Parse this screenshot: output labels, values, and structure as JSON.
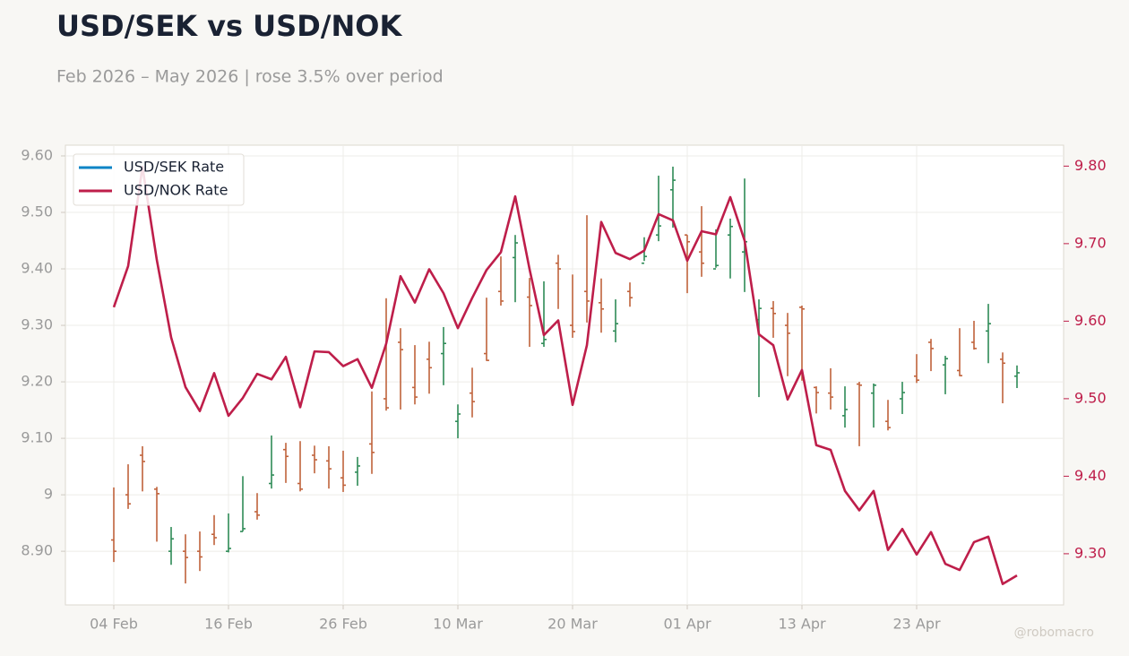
{
  "chart_data": {
    "type": "ohlc",
    "title": "USD/SEK vs USD/NOK",
    "subtitle": "Feb 2026 – May 2026 | rose 3.5% over period",
    "watermark": "@robomacro",
    "categories": [
      "04 Feb",
      null,
      null,
      null,
      null,
      null,
      null,
      null,
      "16 Feb",
      null,
      null,
      null,
      null,
      null,
      null,
      null,
      "26 Feb",
      null,
      null,
      null,
      null,
      null,
      null,
      null,
      "10 Mar",
      null,
      null,
      null,
      null,
      null,
      null,
      null,
      "20 Mar",
      null,
      null,
      null,
      null,
      null,
      null,
      null,
      "01 Apr",
      null,
      null,
      null,
      null,
      null,
      null,
      null,
      "13 Apr",
      null,
      null,
      null,
      null,
      null,
      null,
      null,
      "23 Apr",
      null,
      null,
      null,
      null,
      null,
      null,
      null
    ],
    "up_color": "#2e8b57",
    "down_color": "#c0623b",
    "grid": true,
    "legend": "upper left",
    "ylim": [
      8.805,
      9.619
    ],
    "yticks": [
      {
        "value": 8.9,
        "label": "8.90"
      },
      9,
      {
        "value": 9.1,
        "label": "9.10"
      },
      {
        "value": 9.2,
        "label": "9.20"
      },
      {
        "value": 9.3,
        "label": "9.30"
      },
      {
        "value": 9.4,
        "label": "9.40"
      },
      {
        "value": 9.5,
        "label": "9.50"
      },
      {
        "value": 9.6,
        "label": "9.60"
      }
    ],
    "y2lim": [
      9.234,
      9.827
    ],
    "y2ticks": [
      {
        "value": 9.3,
        "label": "9.30"
      },
      {
        "value": 9.4,
        "label": "9.40"
      },
      {
        "value": 9.5,
        "label": "9.50"
      },
      {
        "value": 9.6,
        "label": "9.60"
      },
      {
        "value": 9.7,
        "label": "9.70"
      },
      {
        "value": 9.8,
        "label": "9.80"
      }
    ],
    "series": [
      {
        "name": "USD/SEK Rate",
        "color": "#0b84c6",
        "type": "ohlc",
        "axis": "y",
        "open": [
          8.92,
          9.0,
          9.07,
          9.01,
          8.9,
          8.9,
          8.9,
          8.93,
          8.9,
          8.935,
          8.97,
          9.02,
          9.08,
          9.02,
          9.07,
          9.06,
          9.03,
          9.04,
          9.09,
          9.17,
          9.27,
          9.19,
          9.24,
          9.25,
          9.13,
          9.18,
          9.25,
          9.36,
          9.42,
          9.35,
          9.268,
          9.41,
          9.3,
          9.36,
          9.34,
          9.29,
          9.36,
          9.41,
          9.46,
          9.54,
          9.46,
          9.43,
          9.4,
          9.46,
          9.43,
          9.31,
          9.33,
          9.3,
          9.332,
          9.19,
          9.18,
          9.14,
          9.196,
          9.18,
          9.13,
          9.17,
          9.21,
          9.27,
          9.23,
          9.22,
          9.27,
          9.29,
          9.24,
          9.21
        ],
        "high": [
          9.013,
          9.054,
          9.086,
          9.014,
          8.943,
          8.93,
          8.935,
          8.964,
          8.967,
          9.033,
          9.003,
          9.105,
          9.092,
          9.095,
          9.087,
          9.086,
          9.078,
          9.067,
          9.183,
          9.348,
          9.295,
          9.265,
          9.271,
          9.297,
          9.16,
          9.225,
          9.349,
          9.422,
          9.46,
          9.384,
          9.378,
          9.425,
          9.39,
          9.495,
          9.383,
          9.346,
          9.376,
          9.456,
          9.565,
          9.581,
          9.46,
          9.511,
          9.47,
          9.489,
          9.56,
          9.346,
          9.343,
          9.322,
          9.335,
          9.192,
          9.224,
          9.192,
          9.2,
          9.197,
          9.168,
          9.2,
          9.249,
          9.276,
          9.246,
          9.295,
          9.308,
          9.338,
          9.252,
          9.229
        ],
        "low": [
          8.881,
          8.975,
          9.006,
          8.917,
          8.876,
          8.843,
          8.865,
          8.911,
          8.898,
          8.935,
          8.956,
          9.011,
          9.021,
          9.006,
          9.038,
          9.011,
          9.005,
          9.016,
          9.037,
          9.149,
          9.151,
          9.16,
          9.179,
          9.194,
          9.1,
          9.137,
          9.237,
          9.335,
          9.341,
          9.262,
          9.262,
          9.329,
          9.278,
          9.305,
          9.287,
          9.27,
          9.333,
          9.414,
          9.449,
          9.473,
          9.357,
          9.386,
          9.402,
          9.383,
          9.359,
          9.173,
          9.278,
          9.21,
          9.202,
          9.144,
          9.151,
          9.119,
          9.086,
          9.119,
          9.114,
          9.143,
          9.198,
          9.219,
          9.178,
          9.21,
          9.257,
          9.233,
          9.162,
          9.189
        ],
        "close": [
          8.9,
          8.984,
          9.059,
          9.002,
          8.922,
          8.889,
          8.89,
          8.924,
          8.905,
          8.94,
          8.964,
          9.035,
          9.068,
          9.01,
          9.062,
          9.046,
          9.017,
          9.051,
          9.075,
          9.154,
          9.257,
          9.173,
          9.225,
          9.268,
          9.143,
          9.165,
          9.238,
          9.343,
          9.446,
          9.335,
          9.275,
          9.4,
          9.289,
          9.343,
          9.329,
          9.303,
          9.349,
          9.422,
          9.476,
          9.557,
          9.448,
          9.41,
          9.406,
          9.475,
          9.448,
          9.33,
          9.321,
          9.286,
          9.329,
          9.181,
          9.173,
          9.151,
          9.194,
          9.194,
          9.119,
          9.181,
          9.203,
          9.259,
          9.241,
          9.211,
          9.259,
          9.303,
          9.233,
          9.216
        ]
      },
      {
        "name": "USD/NOK Rate",
        "color": "#be1e4a",
        "type": "line",
        "axis": "y2",
        "values": [
          9.618,
          9.671,
          9.799,
          9.679,
          9.579,
          9.515,
          9.484,
          9.533,
          9.478,
          9.501,
          9.532,
          9.525,
          9.554,
          9.489,
          9.561,
          9.56,
          9.542,
          9.551,
          9.514,
          9.571,
          9.658,
          9.624,
          9.667,
          9.636,
          9.591,
          9.63,
          9.666,
          9.689,
          9.761,
          9.667,
          9.582,
          9.601,
          9.492,
          9.569,
          9.728,
          9.688,
          9.68,
          9.691,
          9.738,
          9.73,
          9.678,
          9.716,
          9.712,
          9.76,
          9.704,
          9.583,
          9.569,
          9.499,
          9.537,
          9.44,
          9.434,
          9.381,
          9.356,
          9.381,
          9.305,
          9.332,
          9.299,
          9.328,
          9.287,
          9.279,
          9.315,
          9.322,
          9.261,
          9.272
        ]
      }
    ]
  }
}
